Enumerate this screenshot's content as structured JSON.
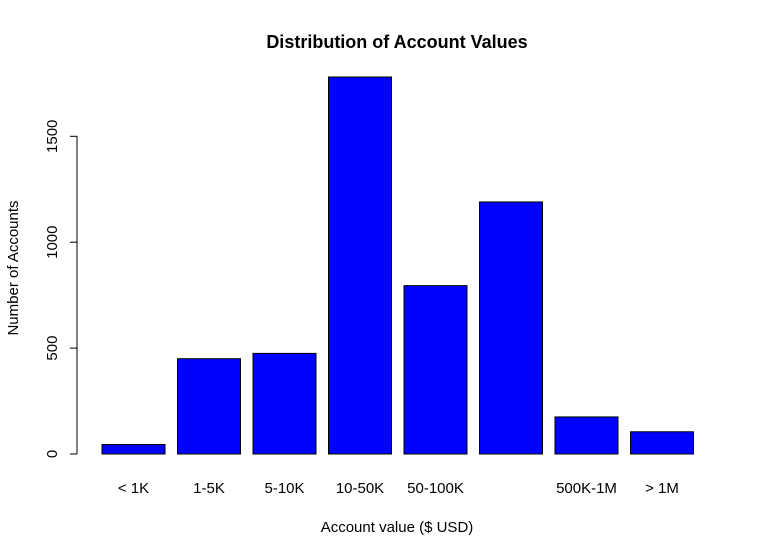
{
  "chart_data": {
    "type": "bar",
    "title": "Distribution of Account Values",
    "xlabel": "Account value ($ USD)",
    "ylabel": "Number of Accounts",
    "categories": [
      "< 1K",
      "1-5K",
      "5-10K",
      "10-50K",
      "50-100K",
      "",
      "500K-1M",
      "> 1M"
    ],
    "values": [
      45,
      450,
      475,
      1780,
      795,
      1190,
      175,
      105
    ],
    "ylim": [
      0,
      1780
    ],
    "yticks": [
      0,
      500,
      1000,
      1500
    ],
    "ytick_labels": [
      "0",
      "500",
      "1000",
      "1500"
    ],
    "bar_color": "#0000FF",
    "bar_edge_color": "#000000",
    "grid": false,
    "legend": "none"
  }
}
